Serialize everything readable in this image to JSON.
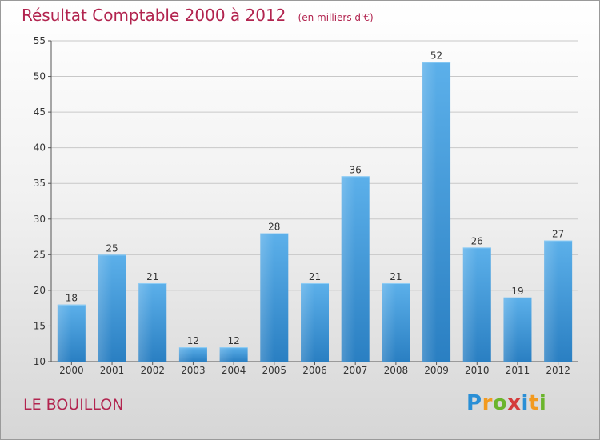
{
  "header": {
    "title": "Résultat Comptable 2000 à 2012",
    "subtitle": "(en milliers d'€)"
  },
  "footer": {
    "commune": "LE BOUILLON",
    "logo_letters": [
      "P",
      "r",
      "o",
      "x",
      "i",
      "t",
      "i"
    ],
    "logo_colors": [
      "#2a8fd6",
      "#f29a1f",
      "#6bb52c",
      "#d43a3a",
      "#2a8fd6",
      "#f29a1f",
      "#6bb52c"
    ]
  },
  "chart_data": {
    "type": "bar",
    "title": "Résultat Comptable 2000 à 2012",
    "subtitle": "(en milliers d'€)",
    "xlabel": "",
    "ylabel": "",
    "categories": [
      "2000",
      "2001",
      "2002",
      "2003",
      "2004",
      "2005",
      "2006",
      "2007",
      "2008",
      "2009",
      "2010",
      "2011",
      "2012"
    ],
    "values": [
      18,
      25,
      21,
      12,
      12,
      28,
      21,
      36,
      21,
      52,
      26,
      19,
      27
    ],
    "ylim": [
      10,
      55
    ],
    "yticks": [
      10,
      15,
      20,
      25,
      30,
      35,
      40,
      45,
      50,
      55
    ],
    "grid": true,
    "bar_color_top": "#5cb0ea",
    "bar_color_bottom": "#2a7fc2",
    "grid_color": "#c8c8c8"
  }
}
